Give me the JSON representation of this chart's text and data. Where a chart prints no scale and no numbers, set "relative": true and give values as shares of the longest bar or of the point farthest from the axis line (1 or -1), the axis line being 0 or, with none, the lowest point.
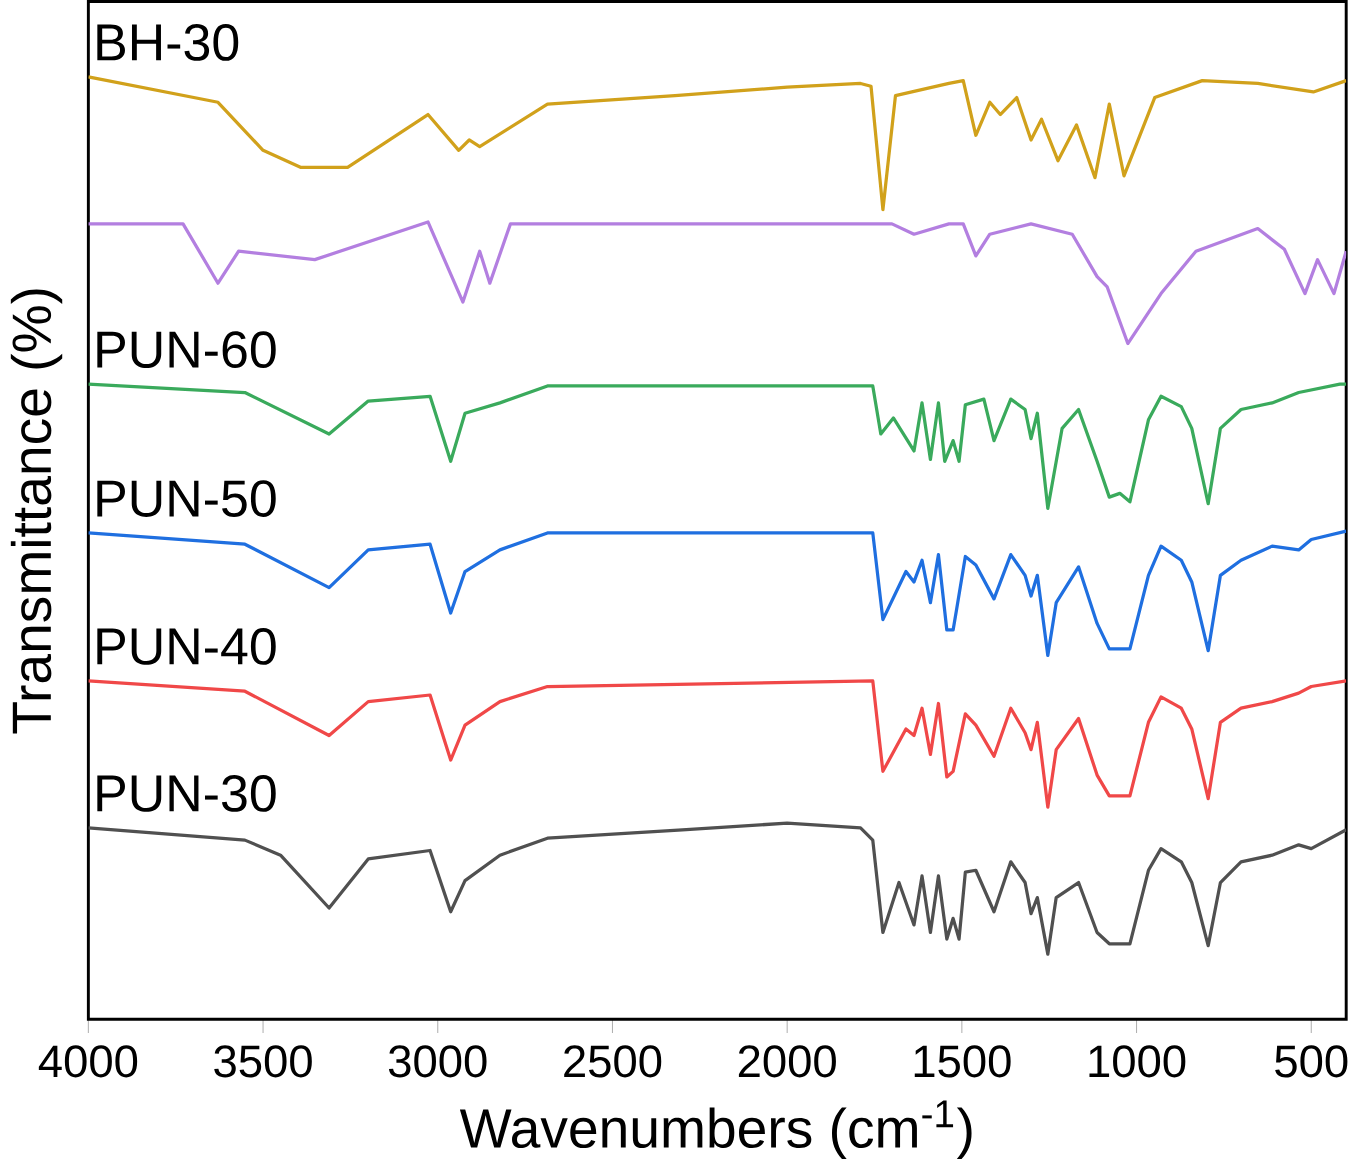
{
  "chart_data": {
    "type": "line",
    "relative": true,
    "xlabel": "Wavenumbers (cm$^{-1}$)",
    "ylabel": "Transmittance (%)",
    "xlim": [
      4000,
      400
    ],
    "xticks": [
      4000,
      3500,
      3000,
      2500,
      2000,
      1500,
      1000,
      500
    ],
    "legend": false,
    "grid": false,
    "marker": "none",
    "line_style": "solid",
    "series": [
      {
        "name": "BH-30",
        "color": "#d1a11b",
        "x": [
          4000,
          3629,
          3500,
          3393,
          3258,
          3028,
          2940,
          2910,
          2880,
          2686,
          2321,
          2000,
          1790,
          1760,
          1726,
          1690,
          1537,
          1496,
          1460,
          1420,
          1390,
          1343,
          1302,
          1272,
          1225,
          1172,
          1119,
          1078,
          1036,
          948,
          812,
          653,
          494,
          400
        ],
        "values": [
          1.0,
          0.973,
          0.922,
          0.904,
          0.904,
          0.96,
          0.922,
          0.933,
          0.926,
          0.971,
          0.98,
          0.989,
          0.993,
          0.99,
          0.859,
          0.98,
          0.993,
          0.996,
          0.938,
          0.973,
          0.96,
          0.978,
          0.933,
          0.955,
          0.911,
          0.949,
          0.893,
          0.971,
          0.895,
          0.978,
          0.996,
          0.993,
          0.984,
          0.996
        ]
      },
      {
        "color": "#b37fe0",
        "x": [
          4000,
          3729,
          3629,
          3570,
          3352,
          3028,
          2928,
          2880,
          2851,
          2792,
          2000,
          1700,
          1637,
          1537,
          1496,
          1460,
          1420,
          1302,
          1184,
          1113,
          1084,
          1025,
          930,
          830,
          653,
          577,
          518,
          482,
          435,
          400
        ],
        "values": [
          0.844,
          0.844,
          0.781,
          0.815,
          0.806,
          0.846,
          0.761,
          0.815,
          0.781,
          0.844,
          0.844,
          0.844,
          0.833,
          0.844,
          0.844,
          0.81,
          0.833,
          0.844,
          0.833,
          0.788,
          0.777,
          0.717,
          0.77,
          0.815,
          0.839,
          0.817,
          0.77,
          0.806,
          0.77,
          0.815
        ]
      },
      {
        "name": "PUN-60",
        "color": "#3aaa5c",
        "x": [
          4000,
          3552,
          3311,
          3199,
          3022,
          2963,
          2922,
          2822,
          2686,
          1755,
          1732,
          1696,
          1637,
          1614,
          1590,
          1567,
          1549,
          1525,
          1508,
          1490,
          1437,
          1408,
          1360,
          1319,
          1302,
          1284,
          1254,
          1213,
          1166,
          1113,
          1078,
          1048,
          1019,
          966,
          930,
          872,
          842,
          795,
          760,
          701,
          612,
          536,
          418,
          400
        ],
        "values": [
          0.674,
          0.665,
          0.621,
          0.656,
          0.661,
          0.592,
          0.643,
          0.654,
          0.672,
          0.672,
          0.621,
          0.638,
          0.603,
          0.654,
          0.594,
          0.654,
          0.592,
          0.614,
          0.592,
          0.652,
          0.658,
          0.614,
          0.658,
          0.647,
          0.616,
          0.643,
          0.542,
          0.627,
          0.647,
          0.592,
          0.554,
          0.558,
          0.549,
          0.636,
          0.661,
          0.65,
          0.627,
          0.547,
          0.627,
          0.647,
          0.654,
          0.665,
          0.674,
          0.674
        ]
      },
      {
        "name": "PUN-50",
        "color": "#1f6fe0",
        "x": [
          4000,
          3552,
          3311,
          3199,
          3022,
          2963,
          2922,
          2822,
          2686,
          1755,
          1726,
          1660,
          1637,
          1614,
          1590,
          1567,
          1543,
          1525,
          1515,
          1490,
          1460,
          1408,
          1360,
          1319,
          1302,
          1284,
          1254,
          1230,
          1166,
          1113,
          1078,
          1019,
          966,
          930,
          872,
          842,
          795,
          760,
          701,
          612,
          536,
          500,
          400
        ],
        "values": [
          0.516,
          0.504,
          0.458,
          0.498,
          0.504,
          0.431,
          0.475,
          0.498,
          0.516,
          0.516,
          0.424,
          0.475,
          0.464,
          0.487,
          0.442,
          0.493,
          0.413,
          0.413,
          0.435,
          0.491,
          0.482,
          0.446,
          0.493,
          0.471,
          0.449,
          0.471,
          0.386,
          0.442,
          0.48,
          0.42,
          0.393,
          0.393,
          0.471,
          0.502,
          0.487,
          0.464,
          0.391,
          0.471,
          0.487,
          0.502,
          0.498,
          0.509,
          0.518
        ]
      },
      {
        "name": "PUN-40",
        "color": "#f04848",
        "x": [
          4000,
          3552,
          3311,
          3199,
          3022,
          2963,
          2922,
          2822,
          2686,
          1755,
          1726,
          1660,
          1637,
          1614,
          1590,
          1567,
          1543,
          1525,
          1490,
          1460,
          1408,
          1360,
          1319,
          1302,
          1284,
          1254,
          1230,
          1166,
          1113,
          1078,
          1019,
          966,
          930,
          872,
          842,
          795,
          760,
          701,
          612,
          536,
          500,
          400
        ],
        "values": [
          0.359,
          0.348,
          0.301,
          0.337,
          0.344,
          0.275,
          0.312,
          0.337,
          0.353,
          0.359,
          0.263,
          0.308,
          0.301,
          0.33,
          0.281,
          0.335,
          0.257,
          0.263,
          0.324,
          0.312,
          0.279,
          0.33,
          0.304,
          0.286,
          0.315,
          0.225,
          0.286,
          0.319,
          0.259,
          0.237,
          0.237,
          0.315,
          0.342,
          0.33,
          0.308,
          0.234,
          0.315,
          0.33,
          0.337,
          0.346,
          0.353,
          0.359
        ]
      },
      {
        "name": "PUN-30",
        "color": "#505050",
        "x": [
          4000,
          3552,
          3450,
          3311,
          3199,
          3022,
          2963,
          2922,
          2822,
          2686,
          2300,
          2000,
          1790,
          1755,
          1726,
          1680,
          1637,
          1614,
          1590,
          1567,
          1543,
          1525,
          1508,
          1490,
          1460,
          1408,
          1360,
          1319,
          1302,
          1284,
          1254,
          1230,
          1166,
          1113,
          1078,
          1019,
          966,
          930,
          872,
          842,
          795,
          760,
          701,
          612,
          536,
          500,
          400
        ],
        "values": [
          0.203,
          0.19,
          0.174,
          0.118,
          0.17,
          0.179,
          0.114,
          0.147,
          0.174,
          0.192,
          0.201,
          0.208,
          0.203,
          0.19,
          0.092,
          0.145,
          0.1,
          0.152,
          0.092,
          0.152,
          0.085,
          0.107,
          0.085,
          0.156,
          0.158,
          0.114,
          0.167,
          0.145,
          0.112,
          0.129,
          0.069,
          0.129,
          0.145,
          0.092,
          0.08,
          0.08,
          0.158,
          0.181,
          0.167,
          0.145,
          0.078,
          0.145,
          0.167,
          0.174,
          0.185,
          0.181,
          0.201
        ]
      }
    ]
  }
}
